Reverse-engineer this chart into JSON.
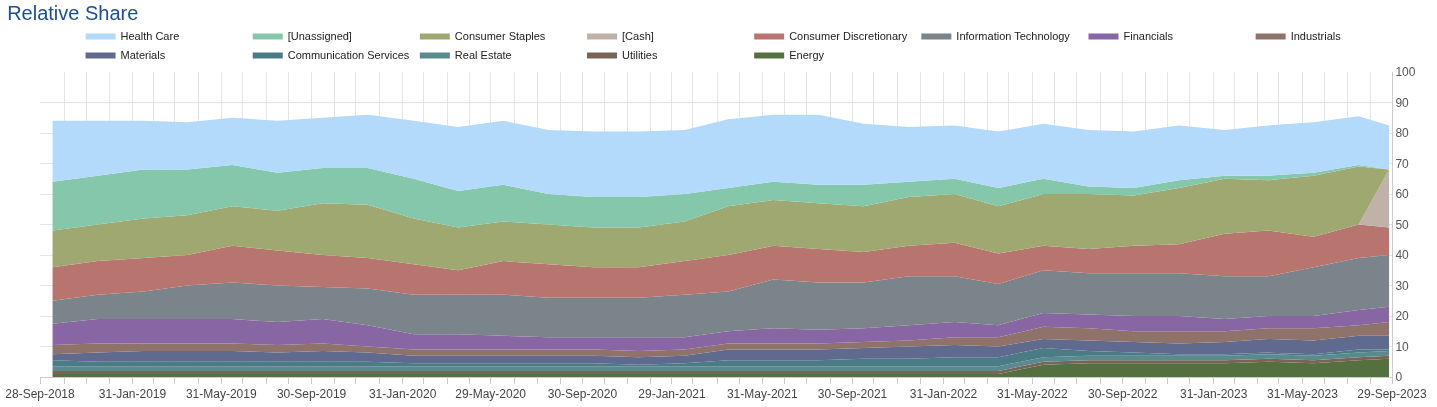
{
  "chart_data": {
    "type": "area",
    "title": "Relative Share",
    "stacked": true,
    "legend": "top",
    "grid": true,
    "x": [
      "2018-10-15",
      "2018-12-15",
      "2019-02-15",
      "2019-04-15",
      "2019-06-15",
      "2019-08-15",
      "2019-10-15",
      "2019-12-15",
      "2020-02-15",
      "2020-04-15",
      "2020-06-15",
      "2020-08-15",
      "2020-10-15",
      "2020-12-15",
      "2021-02-15",
      "2021-04-15",
      "2021-06-15",
      "2021-08-15",
      "2021-10-15",
      "2021-12-15",
      "2022-02-15",
      "2022-04-15",
      "2022-06-15",
      "2022-08-15",
      "2022-10-15",
      "2022-12-15",
      "2023-02-15",
      "2023-04-15",
      "2023-06-15",
      "2023-08-15",
      "2023-09-25"
    ],
    "series": [
      {
        "name": "Energy",
        "color": "#55703f",
        "values": [
          1,
          1,
          1,
          1,
          1,
          1,
          1,
          1,
          1,
          1,
          1,
          1,
          1,
          1,
          1,
          1,
          1,
          1,
          1,
          1,
          1,
          1,
          4,
          4.5,
          4.5,
          4.5,
          4.5,
          5,
          4.5,
          5.5,
          6
        ]
      },
      {
        "name": "Utilities",
        "color": "#7a6458",
        "values": [
          1,
          1,
          1,
          1,
          1,
          1,
          1,
          1,
          1,
          1,
          1,
          1,
          1,
          1,
          1,
          1,
          1,
          1,
          1,
          1,
          1,
          1,
          1,
          1,
          1,
          1,
          1,
          1,
          1,
          1,
          1
        ]
      },
      {
        "name": "Real Estate",
        "color": "#5b8a8e",
        "values": [
          1.5,
          1.5,
          1.5,
          1.5,
          1.5,
          1.5,
          1.5,
          1.5,
          1.5,
          1.5,
          1.5,
          1.5,
          1.5,
          1.5,
          1.5,
          1.5,
          1.5,
          1.5,
          1.5,
          1.5,
          1.5,
          1.5,
          1.5,
          1.5,
          1.5,
          1.5,
          1.5,
          1.5,
          1.5,
          1.5,
          1.5
        ]
      },
      {
        "name": "Communication Services",
        "color": "#4b7c86",
        "values": [
          2,
          1.5,
          1.5,
          1.5,
          1.5,
          1.5,
          1.5,
          1.5,
          1,
          1,
          1,
          1,
          1,
          0.5,
          1,
          2,
          2,
          2,
          2.5,
          2.5,
          3,
          3,
          3,
          1.5,
          1,
          0.5,
          0.5,
          0.5,
          0.5,
          1,
          0.5
        ]
      },
      {
        "name": "Materials",
        "color": "#606a8e",
        "values": [
          2,
          3,
          3.5,
          3.5,
          3.5,
          3,
          3.5,
          3,
          2.5,
          2.5,
          2.5,
          2.5,
          2.5,
          2.5,
          2.5,
          3.5,
          3.5,
          3.5,
          3.5,
          4,
          4,
          3.5,
          3,
          3.5,
          3.5,
          3.5,
          4,
          4.5,
          4.5,
          4.5,
          4.5
        ]
      },
      {
        "name": "Industrials",
        "color": "#8f726a",
        "values": [
          3,
          3,
          2.5,
          2.5,
          2.5,
          2.5,
          2.5,
          2,
          2,
          2,
          2,
          2,
          2,
          2,
          2,
          2,
          2,
          2,
          2,
          2,
          2.5,
          3,
          4,
          4,
          3.5,
          4,
          3.5,
          3.5,
          4,
          3.5,
          4.5
        ]
      },
      {
        "name": "Financials",
        "color": "#8866a3",
        "values": [
          7,
          8,
          8,
          8,
          8,
          7.5,
          8,
          7,
          5,
          5,
          4.5,
          4,
          4,
          4.5,
          4,
          4,
          5,
          4.5,
          4.5,
          5,
          5,
          4,
          4.5,
          4.5,
          5,
          5,
          4,
          4,
          4,
          5,
          5
        ]
      },
      {
        "name": "Information Technology",
        "color": "#7a848a",
        "values": [
          7.5,
          8,
          9,
          11,
          12,
          12,
          10.5,
          12,
          13,
          13,
          13.5,
          13,
          13,
          13,
          14,
          13,
          16,
          15.5,
          15,
          16,
          15,
          13.5,
          14,
          13.5,
          14,
          14,
          14,
          13,
          16,
          17,
          17
        ]
      },
      {
        "name": "Consumer Discretionary",
        "color": "#b87570",
        "values": [
          11,
          11,
          11,
          10,
          12,
          11.5,
          10.5,
          10,
          10,
          8,
          11,
          11,
          10,
          10,
          11,
          12,
          11,
          11,
          10,
          10,
          11,
          10,
          8,
          8,
          9,
          9.5,
          14,
          15,
          10,
          11,
          9
        ]
      },
      {
        "name": "[Cash]",
        "color": "#c0b2a8",
        "values": [
          0,
          0,
          0,
          0,
          0,
          0,
          0,
          0,
          0,
          0,
          0,
          0,
          0,
          0,
          0,
          0,
          0,
          0,
          0,
          0,
          0,
          0,
          0,
          0,
          0,
          0,
          0,
          0,
          0,
          0,
          19
        ]
      },
      {
        "name": "Consumer Staples",
        "color": "#a0a871",
        "values": [
          12,
          12,
          13,
          13,
          13,
          13,
          17,
          17.5,
          15,
          14,
          13,
          13,
          13,
          13,
          13,
          16,
          15,
          15,
          15,
          16,
          16,
          15.5,
          17,
          18,
          16.5,
          18.5,
          18,
          16.5,
          20,
          19,
          0
        ]
      },
      {
        "name": "[Unassigned]",
        "color": "#85c7ab",
        "values": [
          16,
          16,
          16,
          15,
          13.5,
          12.5,
          11.5,
          12,
          13,
          12,
          12,
          10,
          10,
          10,
          9,
          6,
          6,
          6,
          7,
          5,
          5,
          6,
          5,
          2.5,
          2.5,
          2.5,
          1,
          1.5,
          1,
          0.5,
          0
        ]
      },
      {
        "name": "Health Care",
        "color": "#b3d9fb",
        "values": [
          20,
          18,
          16,
          15.5,
          15.5,
          17,
          16.5,
          17.5,
          19,
          21,
          21,
          21,
          21.5,
          21.5,
          21,
          22.5,
          22,
          23,
          20,
          18,
          17.5,
          18.5,
          18,
          18.5,
          18.5,
          18,
          15,
          16.5,
          16.5,
          16,
          14.5
        ]
      }
    ],
    "xlim": [
      "2018-09-28",
      "2023-09-29"
    ],
    "xticks": [
      {
        "value": "2018-09-28",
        "label": "28-Sep-2018"
      },
      {
        "value": "2018-10-31",
        "label": null
      },
      {
        "value": "2018-11-30",
        "label": null
      },
      {
        "value": "2018-12-31",
        "label": null
      },
      {
        "value": "2019-01-31",
        "label": "31-Jan-2019"
      },
      {
        "value": "2019-02-28",
        "label": null
      },
      {
        "value": "2019-03-29",
        "label": null
      },
      {
        "value": "2019-04-30",
        "label": null
      },
      {
        "value": "2019-05-31",
        "label": "31-May-2019"
      },
      {
        "value": "2019-06-28",
        "label": null
      },
      {
        "value": "2019-07-31",
        "label": null
      },
      {
        "value": "2019-08-30",
        "label": null
      },
      {
        "value": "2019-09-30",
        "label": "30-Sep-2019"
      },
      {
        "value": "2019-10-31",
        "label": null
      },
      {
        "value": "2019-11-29",
        "label": null
      },
      {
        "value": "2019-12-31",
        "label": null
      },
      {
        "value": "2020-01-31",
        "label": "31-Jan-2020"
      },
      {
        "value": "2020-02-28",
        "label": null
      },
      {
        "value": "2020-03-31",
        "label": null
      },
      {
        "value": "2020-04-30",
        "label": null
      },
      {
        "value": "2020-05-29",
        "label": "29-May-2020"
      },
      {
        "value": "2020-06-30",
        "label": null
      },
      {
        "value": "2020-07-31",
        "label": null
      },
      {
        "value": "2020-08-31",
        "label": null
      },
      {
        "value": "2020-09-30",
        "label": "30-Sep-2020"
      },
      {
        "value": "2020-10-30",
        "label": null
      },
      {
        "value": "2020-11-30",
        "label": null
      },
      {
        "value": "2020-12-31",
        "label": null
      },
      {
        "value": "2021-01-29",
        "label": "29-Jan-2021"
      },
      {
        "value": "2021-02-26",
        "label": null
      },
      {
        "value": "2021-03-31",
        "label": null
      },
      {
        "value": "2021-04-30",
        "label": null
      },
      {
        "value": "2021-05-31",
        "label": "31-May-2021"
      },
      {
        "value": "2021-06-30",
        "label": null
      },
      {
        "value": "2021-07-30",
        "label": null
      },
      {
        "value": "2021-08-31",
        "label": null
      },
      {
        "value": "2021-09-30",
        "label": "30-Sep-2021"
      },
      {
        "value": "2021-10-29",
        "label": null
      },
      {
        "value": "2021-11-30",
        "label": null
      },
      {
        "value": "2021-12-31",
        "label": null
      },
      {
        "value": "2022-01-31",
        "label": "31-Jan-2022"
      },
      {
        "value": "2022-02-28",
        "label": null
      },
      {
        "value": "2022-03-31",
        "label": null
      },
      {
        "value": "2022-04-29",
        "label": null
      },
      {
        "value": "2022-05-31",
        "label": "31-May-2022"
      },
      {
        "value": "2022-06-30",
        "label": null
      },
      {
        "value": "2022-07-29",
        "label": null
      },
      {
        "value": "2022-08-31",
        "label": null
      },
      {
        "value": "2022-09-30",
        "label": "30-Sep-2022"
      },
      {
        "value": "2022-10-31",
        "label": null
      },
      {
        "value": "2022-11-30",
        "label": null
      },
      {
        "value": "2022-12-30",
        "label": null
      },
      {
        "value": "2023-01-31",
        "label": "31-Jan-2023"
      },
      {
        "value": "2023-02-28",
        "label": null
      },
      {
        "value": "2023-03-31",
        "label": null
      },
      {
        "value": "2023-04-28",
        "label": null
      },
      {
        "value": "2023-05-31",
        "label": "31-May-2023"
      },
      {
        "value": "2023-06-30",
        "label": null
      },
      {
        "value": "2023-07-31",
        "label": null
      },
      {
        "value": "2023-08-31",
        "label": null
      },
      {
        "value": "2023-09-29",
        "label": "29-Sep-2023"
      }
    ],
    "ylim": [
      0,
      100
    ],
    "yticks": [
      0,
      10,
      20,
      30,
      40,
      50,
      60,
      70,
      80,
      90,
      100
    ]
  }
}
